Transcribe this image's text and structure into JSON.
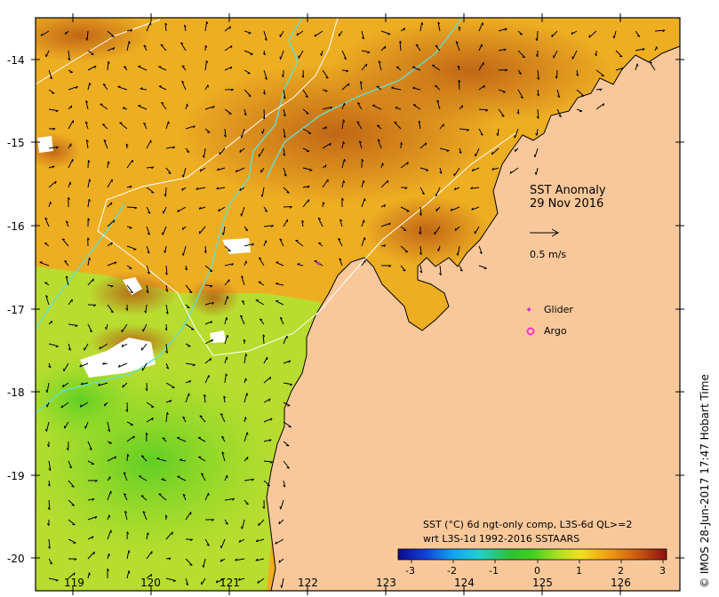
{
  "map": {
    "title_line1": "SST Anomaly",
    "title_line2": "29 Nov 2016",
    "vector_scale_label": "0.5 m/s",
    "legend": {
      "glider_label": "Glider",
      "argo_label": "Argo",
      "glider_color": "#cc33cc",
      "argo_color": "#ff33cc"
    },
    "colorbar": {
      "title_line1": "SST (°C) 6d ngt-only comp, L3S-6d QL>=2",
      "title_line2": "wrt L3S-1d 1992-2016 SSTAARS",
      "ticks": [
        "-3",
        "-2",
        "-1",
        "0",
        "1",
        "2",
        "3"
      ],
      "min": -3,
      "max": 3
    },
    "lat_ticks": [
      "-14",
      "-15",
      "-16",
      "-17",
      "-18",
      "-19",
      "-20"
    ],
    "lon_ticks": [
      "119",
      "120",
      "121",
      "122",
      "123",
      "124",
      "125",
      "126"
    ],
    "credit": "©  IMOS 28-Jun-2017 17:47 Hobart Time",
    "colors": {
      "land": "#f9c89a",
      "anomaly_high": "#b85a14",
      "anomaly_mid": "#f0a020",
      "anomaly_low": "#66dd22",
      "bathy_200m": "#66ddcc",
      "bathy_contour": "#ffffff"
    }
  }
}
